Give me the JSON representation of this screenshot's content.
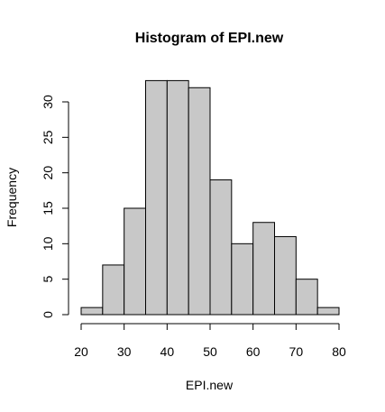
{
  "chart_data": {
    "type": "bar",
    "title": "Histogram of EPI.new",
    "xlabel": "EPI.new",
    "ylabel": "Frequency",
    "bins": [
      {
        "start": 20,
        "end": 25,
        "count": 1
      },
      {
        "start": 25,
        "end": 30,
        "count": 7
      },
      {
        "start": 30,
        "end": 35,
        "count": 15
      },
      {
        "start": 35,
        "end": 40,
        "count": 33
      },
      {
        "start": 40,
        "end": 45,
        "count": 33
      },
      {
        "start": 45,
        "end": 50,
        "count": 32
      },
      {
        "start": 50,
        "end": 55,
        "count": 19
      },
      {
        "start": 55,
        "end": 60,
        "count": 10
      },
      {
        "start": 60,
        "end": 65,
        "count": 13
      },
      {
        "start": 65,
        "end": 70,
        "count": 11
      },
      {
        "start": 70,
        "end": 75,
        "count": 5
      },
      {
        "start": 75,
        "end": 80,
        "count": 1
      }
    ],
    "x_ticks": [
      20,
      30,
      40,
      50,
      60,
      70,
      80
    ],
    "y_ticks": [
      0,
      5,
      10,
      15,
      20,
      25,
      30
    ],
    "xlim": [
      20,
      80
    ],
    "ylim": [
      0,
      33
    ],
    "grid": false,
    "bar_color": "#c8c8c8",
    "edge_color": "#000000"
  }
}
